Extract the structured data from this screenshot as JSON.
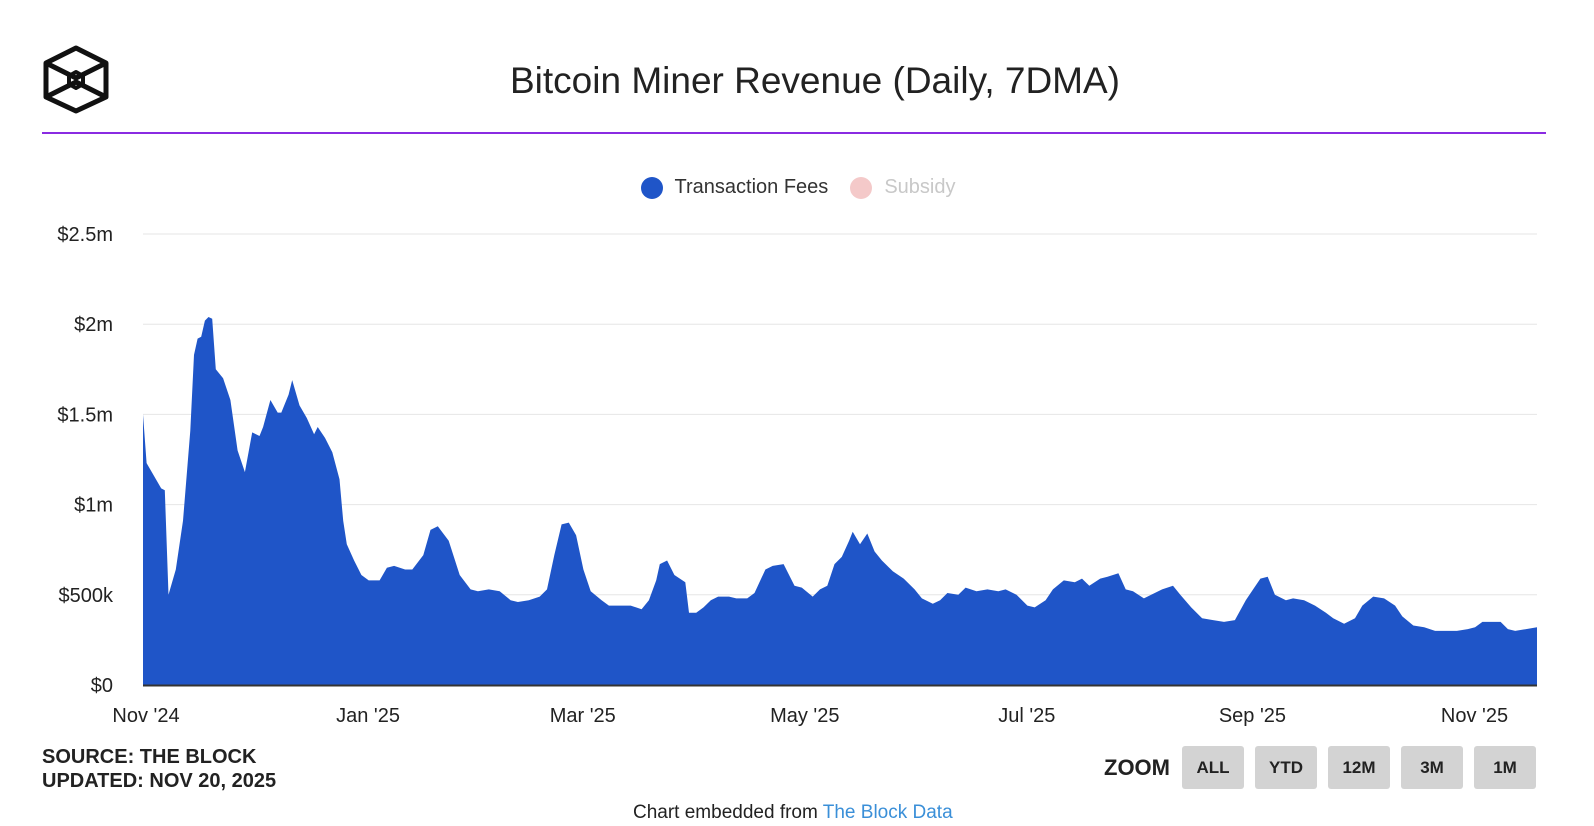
{
  "header": {
    "title": "Bitcoin Miner Revenue (Daily, 7DMA)",
    "logo": "The Block"
  },
  "colors": {
    "accent_rule": "#8a2be2",
    "fees": "#1f55c8",
    "subsidy": "#f4c9c9"
  },
  "legend": [
    {
      "label": "Transaction Fees",
      "color": "#1f55c8",
      "visible": true
    },
    {
      "label": "Subsidy",
      "color": "#f4c9c9",
      "visible": false
    }
  ],
  "footer": {
    "source": "SOURCE: THE BLOCK",
    "updated": "UPDATED: NOV 20, 2025",
    "zoom_label": "ZOOM",
    "zoom_buttons": [
      "ALL",
      "YTD",
      "12M",
      "3M",
      "1M"
    ],
    "embed_text": "Chart embedded from ",
    "embed_link": "The Block Data"
  },
  "chart_data": {
    "type": "area",
    "title": "Bitcoin Miner Revenue (Daily, 7DMA)",
    "xlabel": "",
    "ylabel": "",
    "ylim": [
      0,
      2500000
    ],
    "y_ticks": [
      "$0",
      "$500k",
      "$1m",
      "$1.5m",
      "$2m",
      "$2.5m"
    ],
    "x_ticks": [
      "Nov '24",
      "Jan '25",
      "Mar '25",
      "May '25",
      "Jul '25",
      "Sep '25",
      "Nov '25"
    ],
    "x_tick_dates": [
      "2024-11-01",
      "2025-01-01",
      "2025-03-01",
      "2025-05-01",
      "2025-07-01",
      "2025-09-01",
      "2025-11-01"
    ],
    "xlim": [
      "2024-11-01",
      "2025-11-19"
    ],
    "grid": true,
    "legend_position": "top",
    "series": [
      {
        "name": "Transaction Fees",
        "unit": "USD millions",
        "points": [
          [
            "2024-11-01",
            1.5
          ],
          [
            "2024-11-02",
            1.23
          ],
          [
            "2024-11-04",
            1.16
          ],
          [
            "2024-11-06",
            1.09
          ],
          [
            "2024-11-07",
            1.08
          ],
          [
            "2024-11-08",
            0.5
          ],
          [
            "2024-11-10",
            0.64
          ],
          [
            "2024-11-12",
            0.91
          ],
          [
            "2024-11-14",
            1.41
          ],
          [
            "2024-11-15",
            1.83
          ],
          [
            "2024-11-16",
            1.92
          ],
          [
            "2024-11-17",
            1.93
          ],
          [
            "2024-11-18",
            2.02
          ],
          [
            "2024-11-19",
            2.04
          ],
          [
            "2024-11-20",
            2.03
          ],
          [
            "2024-11-21",
            1.75
          ],
          [
            "2024-11-23",
            1.7
          ],
          [
            "2024-11-25",
            1.58
          ],
          [
            "2024-11-27",
            1.3
          ],
          [
            "2024-11-29",
            1.18
          ],
          [
            "2024-12-01",
            1.4
          ],
          [
            "2024-12-03",
            1.38
          ],
          [
            "2024-12-04",
            1.43
          ],
          [
            "2024-12-06",
            1.58
          ],
          [
            "2024-12-08",
            1.51
          ],
          [
            "2024-12-09",
            1.51
          ],
          [
            "2024-12-11",
            1.61
          ],
          [
            "2024-12-12",
            1.69
          ],
          [
            "2024-12-14",
            1.55
          ],
          [
            "2024-12-16",
            1.48
          ],
          [
            "2024-12-18",
            1.39
          ],
          [
            "2024-12-19",
            1.43
          ],
          [
            "2024-12-21",
            1.37
          ],
          [
            "2024-12-23",
            1.29
          ],
          [
            "2024-12-25",
            1.14
          ],
          [
            "2024-12-26",
            0.91
          ],
          [
            "2024-12-27",
            0.78
          ],
          [
            "2024-12-29",
            0.69
          ],
          [
            "2024-12-31",
            0.61
          ],
          [
            "2025-01-02",
            0.58
          ],
          [
            "2025-01-05",
            0.58
          ],
          [
            "2025-01-07",
            0.65
          ],
          [
            "2025-01-09",
            0.66
          ],
          [
            "2025-01-12",
            0.64
          ],
          [
            "2025-01-14",
            0.64
          ],
          [
            "2025-01-17",
            0.72
          ],
          [
            "2025-01-19",
            0.86
          ],
          [
            "2025-01-21",
            0.88
          ],
          [
            "2025-01-24",
            0.8
          ],
          [
            "2025-01-27",
            0.61
          ],
          [
            "2025-01-30",
            0.53
          ],
          [
            "2025-02-01",
            0.52
          ],
          [
            "2025-02-04",
            0.53
          ],
          [
            "2025-02-07",
            0.52
          ],
          [
            "2025-02-10",
            0.47
          ],
          [
            "2025-02-12",
            0.46
          ],
          [
            "2025-02-15",
            0.47
          ],
          [
            "2025-02-18",
            0.49
          ],
          [
            "2025-02-20",
            0.53
          ],
          [
            "2025-02-22",
            0.72
          ],
          [
            "2025-02-24",
            0.89
          ],
          [
            "2025-02-26",
            0.9
          ],
          [
            "2025-02-28",
            0.83
          ],
          [
            "2025-03-02",
            0.64
          ],
          [
            "2025-03-04",
            0.52
          ],
          [
            "2025-03-07",
            0.47
          ],
          [
            "2025-03-09",
            0.44
          ],
          [
            "2025-03-12",
            0.44
          ],
          [
            "2025-03-15",
            0.44
          ],
          [
            "2025-03-18",
            0.42
          ],
          [
            "2025-03-20",
            0.47
          ],
          [
            "2025-03-22",
            0.58
          ],
          [
            "2025-03-23",
            0.67
          ],
          [
            "2025-03-25",
            0.69
          ],
          [
            "2025-03-27",
            0.61
          ],
          [
            "2025-03-30",
            0.57
          ],
          [
            "2025-03-31",
            0.4
          ],
          [
            "2025-04-02",
            0.4
          ],
          [
            "2025-04-04",
            0.43
          ],
          [
            "2025-04-06",
            0.47
          ],
          [
            "2025-04-08",
            0.49
          ],
          [
            "2025-04-11",
            0.49
          ],
          [
            "2025-04-13",
            0.48
          ],
          [
            "2025-04-16",
            0.48
          ],
          [
            "2025-04-18",
            0.51
          ],
          [
            "2025-04-21",
            0.64
          ],
          [
            "2025-04-23",
            0.66
          ],
          [
            "2025-04-26",
            0.67
          ],
          [
            "2025-04-29",
            0.55
          ],
          [
            "2025-05-01",
            0.54
          ],
          [
            "2025-05-04",
            0.49
          ],
          [
            "2025-05-06",
            0.53
          ],
          [
            "2025-05-08",
            0.55
          ],
          [
            "2025-05-10",
            0.67
          ],
          [
            "2025-05-12",
            0.71
          ],
          [
            "2025-05-14",
            0.8
          ],
          [
            "2025-05-15",
            0.85
          ],
          [
            "2025-05-17",
            0.78
          ],
          [
            "2025-05-19",
            0.84
          ],
          [
            "2025-05-21",
            0.74
          ],
          [
            "2025-05-23",
            0.69
          ],
          [
            "2025-05-26",
            0.63
          ],
          [
            "2025-05-29",
            0.59
          ],
          [
            "2025-06-01",
            0.53
          ],
          [
            "2025-06-03",
            0.48
          ],
          [
            "2025-06-06",
            0.45
          ],
          [
            "2025-06-08",
            0.47
          ],
          [
            "2025-06-10",
            0.51
          ],
          [
            "2025-06-13",
            0.5
          ],
          [
            "2025-06-15",
            0.54
          ],
          [
            "2025-06-18",
            0.52
          ],
          [
            "2025-06-21",
            0.53
          ],
          [
            "2025-06-24",
            0.52
          ],
          [
            "2025-06-26",
            0.53
          ],
          [
            "2025-06-29",
            0.5
          ],
          [
            "2025-07-02",
            0.44
          ],
          [
            "2025-07-04",
            0.43
          ],
          [
            "2025-07-07",
            0.47
          ],
          [
            "2025-07-09",
            0.53
          ],
          [
            "2025-07-12",
            0.58
          ],
          [
            "2025-07-15",
            0.57
          ],
          [
            "2025-07-17",
            0.59
          ],
          [
            "2025-07-19",
            0.55
          ],
          [
            "2025-07-22",
            0.59
          ],
          [
            "2025-07-24",
            0.6
          ],
          [
            "2025-07-27",
            0.62
          ],
          [
            "2025-07-29",
            0.53
          ],
          [
            "2025-07-31",
            0.52
          ],
          [
            "2025-08-03",
            0.48
          ],
          [
            "2025-08-05",
            0.5
          ],
          [
            "2025-08-08",
            0.53
          ],
          [
            "2025-08-11",
            0.55
          ],
          [
            "2025-08-13",
            0.5
          ],
          [
            "2025-08-16",
            0.43
          ],
          [
            "2025-08-19",
            0.37
          ],
          [
            "2025-08-22",
            0.36
          ],
          [
            "2025-08-25",
            0.35
          ],
          [
            "2025-08-28",
            0.36
          ],
          [
            "2025-08-31",
            0.47
          ],
          [
            "2025-09-02",
            0.53
          ],
          [
            "2025-09-04",
            0.59
          ],
          [
            "2025-09-06",
            0.6
          ],
          [
            "2025-09-08",
            0.5
          ],
          [
            "2025-09-11",
            0.47
          ],
          [
            "2025-09-13",
            0.48
          ],
          [
            "2025-09-16",
            0.47
          ],
          [
            "2025-09-19",
            0.44
          ],
          [
            "2025-09-22",
            0.4
          ],
          [
            "2025-09-24",
            0.37
          ],
          [
            "2025-09-27",
            0.34
          ],
          [
            "2025-09-30",
            0.37
          ],
          [
            "2025-10-02",
            0.44
          ],
          [
            "2025-10-05",
            0.49
          ],
          [
            "2025-10-08",
            0.48
          ],
          [
            "2025-10-11",
            0.44
          ],
          [
            "2025-10-13",
            0.38
          ],
          [
            "2025-10-16",
            0.33
          ],
          [
            "2025-10-19",
            0.32
          ],
          [
            "2025-10-22",
            0.3
          ],
          [
            "2025-10-25",
            0.3
          ],
          [
            "2025-10-28",
            0.3
          ],
          [
            "2025-10-31",
            0.31
          ],
          [
            "2025-11-02",
            0.32
          ],
          [
            "2025-11-04",
            0.35
          ],
          [
            "2025-11-07",
            0.35
          ],
          [
            "2025-11-09",
            0.35
          ],
          [
            "2025-11-11",
            0.31
          ],
          [
            "2025-11-13",
            0.3
          ],
          [
            "2025-11-16",
            0.31
          ],
          [
            "2025-11-19",
            0.32
          ]
        ]
      }
    ]
  }
}
